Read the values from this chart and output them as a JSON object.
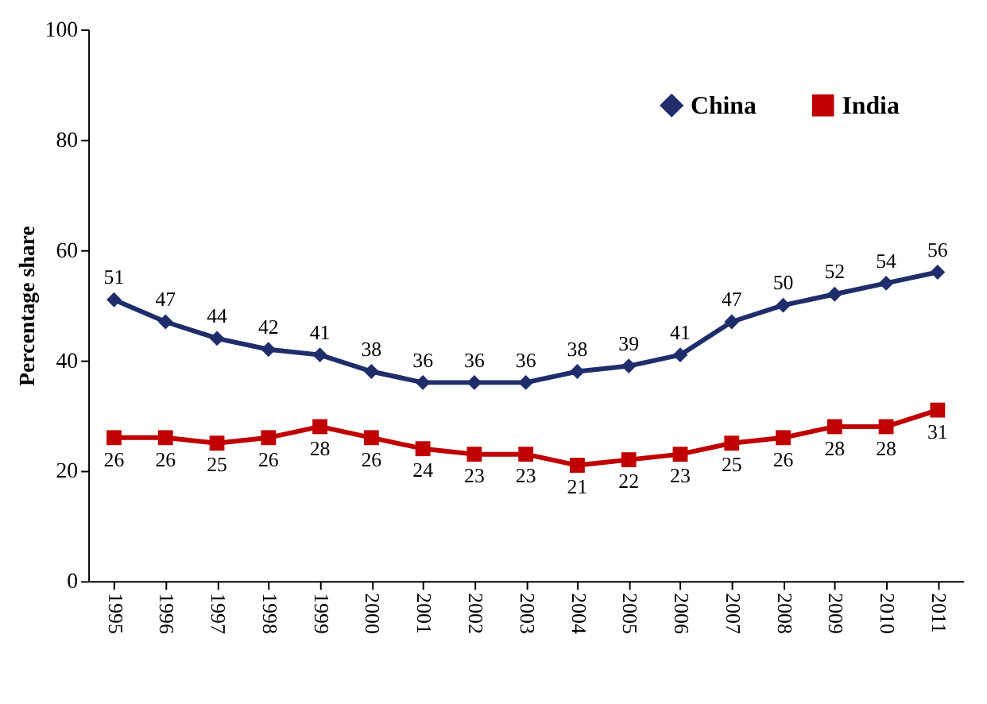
{
  "chart_data": {
    "type": "line",
    "ylabel": "Percentage share",
    "categories": [
      "1995",
      "1996",
      "1997",
      "1998",
      "1999",
      "2000",
      "2001",
      "2002",
      "2003",
      "2004",
      "2005",
      "2006",
      "2007",
      "2008",
      "2009",
      "2010",
      "2011"
    ],
    "series": [
      {
        "name": "China",
        "color": "#1f2d6b",
        "marker": "diamond",
        "values": [
          51,
          47,
          44,
          42,
          41,
          38,
          36,
          36,
          36,
          38,
          39,
          41,
          47,
          50,
          52,
          54,
          56
        ]
      },
      {
        "name": "India",
        "color": "#c00000",
        "marker": "square",
        "values": [
          26,
          26,
          25,
          26,
          28,
          26,
          24,
          23,
          23,
          21,
          22,
          23,
          25,
          26,
          28,
          28,
          31
        ]
      }
    ],
    "ylim": [
      0,
      100
    ],
    "yticks": [
      0,
      20,
      40,
      60,
      80,
      100
    ],
    "grid": false,
    "legend": "top right",
    "data_labels": true,
    "line_style": "solid"
  }
}
